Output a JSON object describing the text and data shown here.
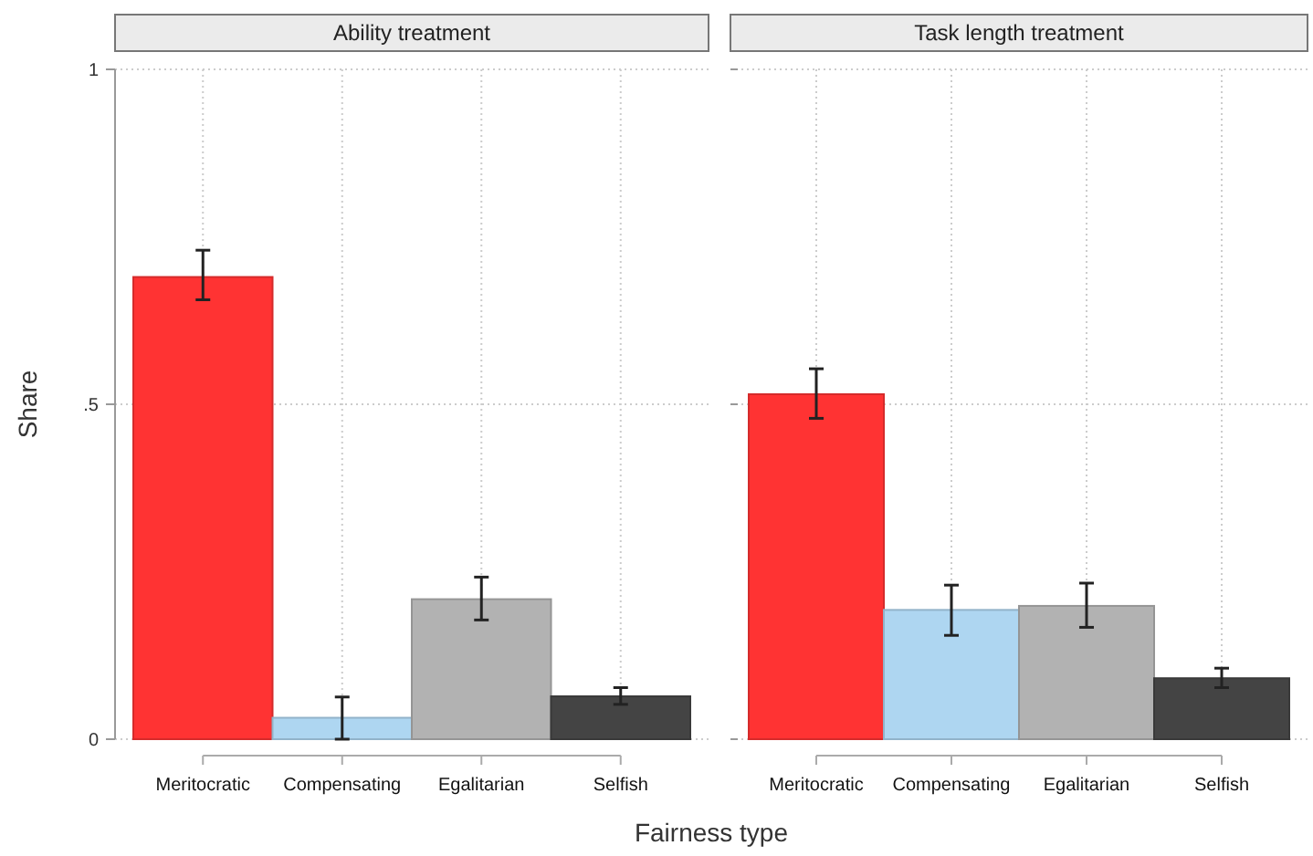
{
  "chart_data": [
    {
      "type": "bar",
      "title": "Ability treatment",
      "ylabel": "Share",
      "xlabel": "Fairness type",
      "categories": [
        "Meritocratic",
        "Compensating",
        "Egalitarian",
        "Selfish"
      ],
      "values": [
        0.69,
        0.032,
        0.209,
        0.064
      ],
      "colors": [
        "#ff3333",
        "#aed6f1",
        "#b2b2b2",
        "#444444"
      ],
      "errors": [
        [
          0.656,
          0.73
        ],
        [
          0,
          0.063
        ],
        [
          0.178,
          0.242
        ],
        [
          0.052,
          0.077
        ]
      ],
      "ylim": [
        0,
        1
      ],
      "yticks": [
        0,
        {
          "value": 0.5,
          "label": ".5"
        },
        1
      ],
      "grid": true
    },
    {
      "type": "bar",
      "title": "Task length treatment",
      "categories": [
        "Meritocratic",
        "Compensating",
        "Egalitarian",
        "Selfish"
      ],
      "values": [
        0.515,
        0.193,
        0.199,
        0.091
      ],
      "colors": [
        "#ff3333",
        "#aed6f1",
        "#b2b2b2",
        "#444444"
      ],
      "errors": [
        [
          0.479,
          0.553
        ],
        [
          0.155,
          0.23
        ],
        [
          0.167,
          0.233
        ],
        [
          0.077,
          0.106
        ]
      ],
      "ylim": [
        0,
        1
      ],
      "yticks": [
        {
          "value": 0,
          "label": null
        },
        {
          "value": 0.5,
          "label": null
        },
        {
          "value": 1,
          "label": null
        }
      ],
      "grid": true,
      "tick_labels": "x"
    }
  ]
}
